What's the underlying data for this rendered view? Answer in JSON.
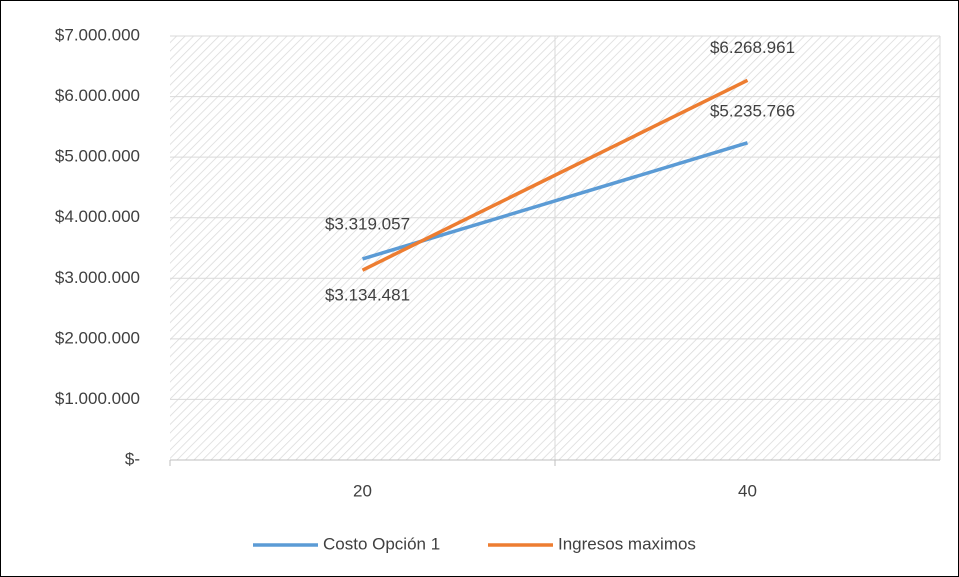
{
  "chart_data": {
    "type": "line",
    "categories": [
      "20",
      "40"
    ],
    "series": [
      {
        "name": "Costo Opción 1",
        "color": "#5b9bd5",
        "values": [
          3319057,
          5235766
        ],
        "value_labels": [
          "$3.319.057",
          "$5.235.766"
        ]
      },
      {
        "name": "Ingresos maximos",
        "color": "#ed7d31",
        "values": [
          3134481,
          6268961
        ],
        "value_labels": [
          "$3.134.481",
          "$6.268.961"
        ]
      }
    ],
    "ylim": [
      0,
      7000000
    ],
    "yticks": [
      {
        "value": 0,
        "label": "$-"
      },
      {
        "value": 1000000,
        "label": "$1.000.000"
      },
      {
        "value": 2000000,
        "label": "$2.000.000"
      },
      {
        "value": 3000000,
        "label": "$3.000.000"
      },
      {
        "value": 4000000,
        "label": "$4.000.000"
      },
      {
        "value": 5000000,
        "label": "$5.000.000"
      },
      {
        "value": 6000000,
        "label": "$6.000.000"
      },
      {
        "value": 7000000,
        "label": "$7.000.000"
      }
    ],
    "grid": true,
    "legend": "bottom"
  }
}
